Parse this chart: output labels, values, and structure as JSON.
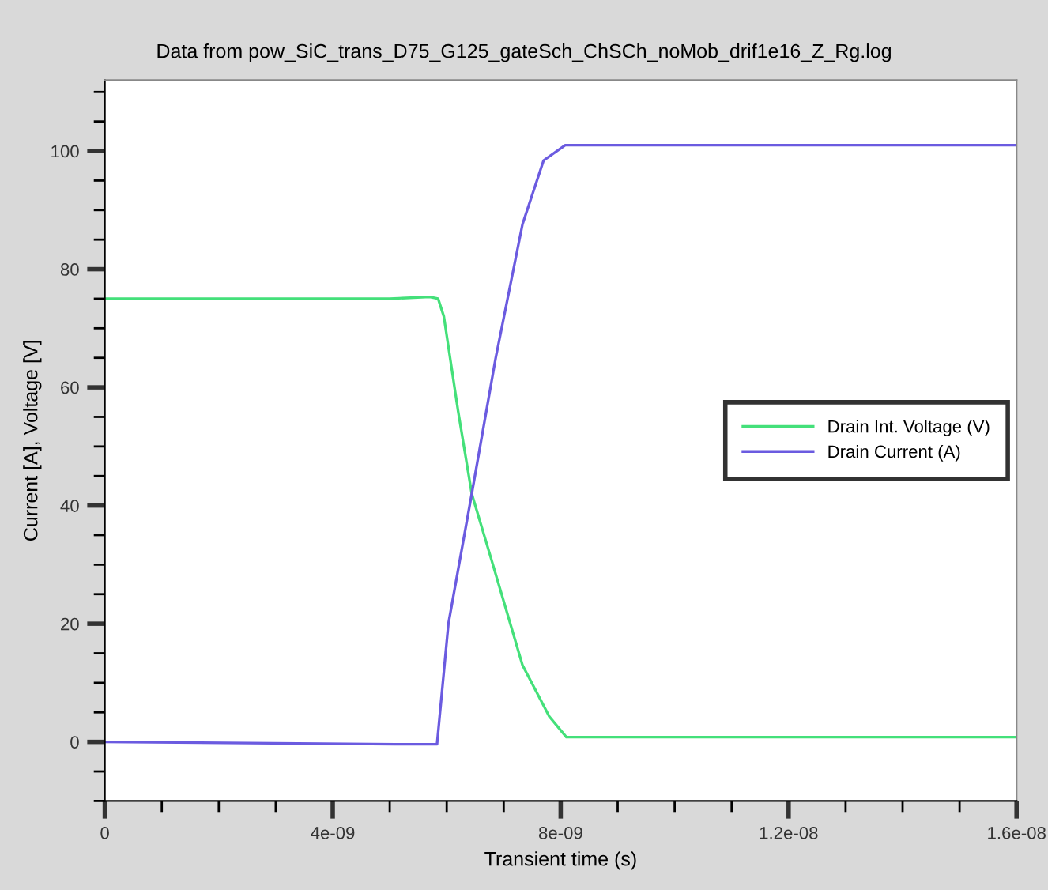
{
  "chart_data": {
    "type": "line",
    "subtitle": "Data from pow_SiC_trans_D75_G125_gateSch_ChSCh_noMob_drif1e16_Z_Rg.log",
    "xlabel": "Transient time (s)",
    "ylabel": "Current [A], Voltage [V]",
    "series": [
      {
        "name": "Drain Int. Voltage (V)",
        "color": "#44e07a",
        "x": [
          0,
          5e-09,
          5.7e-09,
          5.85e-09,
          5.95e-09,
          6.2e-09,
          6.44e-09,
          6.78e-09,
          7.33e-09,
          7.8e-09,
          8.1e-09,
          1.6e-08
        ],
        "values": [
          75,
          75,
          75.3,
          75,
          72,
          56,
          42,
          31,
          13,
          4.3,
          0.8,
          0.8
        ]
      },
      {
        "name": "Drain Current (A)",
        "color": "#6b5be0",
        "x": [
          0,
          5.1e-09,
          5.83e-09,
          6.03e-09,
          6.44e-09,
          6.86e-09,
          7.33e-09,
          7.7e-09,
          8.08e-09,
          1.6e-08
        ],
        "values": [
          0,
          -0.4,
          -0.4,
          20,
          42,
          65,
          87.6,
          98.4,
          101,
          101
        ]
      }
    ],
    "xlim": [
      0,
      1.6e-08
    ],
    "xticks": [
      {
        "value": 0,
        "label": "0"
      },
      {
        "value": 4e-09,
        "label": "4e-09"
      },
      {
        "value": 8e-09,
        "label": "8e-09"
      },
      {
        "value": 1.2e-08,
        "label": "1.2e-08"
      },
      {
        "value": 1.6e-08,
        "label": "1.6e-08"
      }
    ],
    "ylim": [
      -10,
      112
    ],
    "yticks": [
      0,
      20,
      40,
      60,
      80,
      100
    ],
    "grid": false,
    "legend": "right",
    "line_style": "solid",
    "marker": "none"
  }
}
